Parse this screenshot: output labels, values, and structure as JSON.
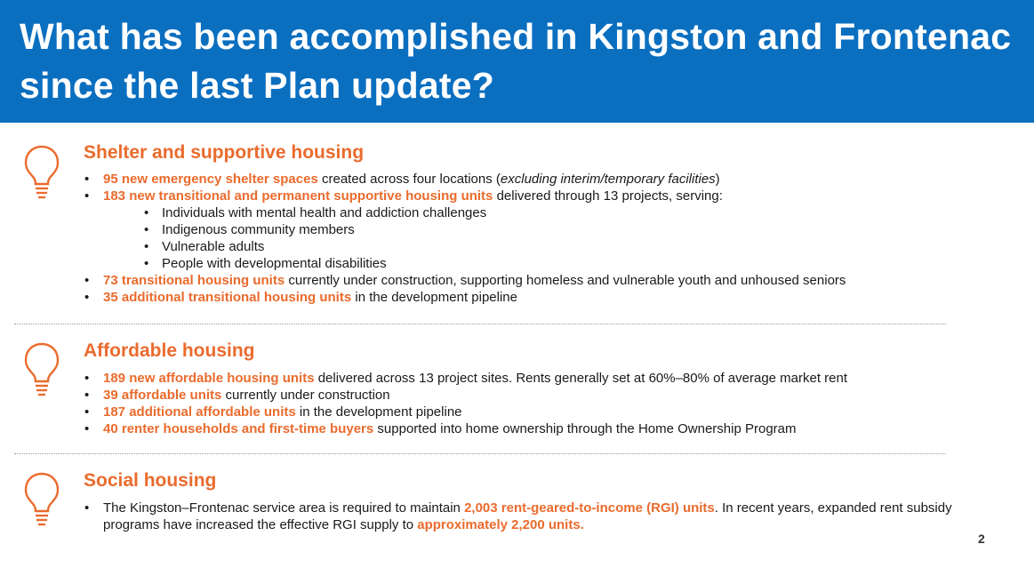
{
  "header": {
    "title": "What has been accomplished in Kingston and Frontenac since the last Plan update?"
  },
  "colors": {
    "header_bg": "#0b6fc0",
    "accent": "#ea6b2d",
    "text": "#1a1a1a"
  },
  "icons": {
    "section_icon": "lightbulb-icon"
  },
  "sections": [
    {
      "title": "Shelter and supportive housing",
      "items": [
        {
          "highlight": "95 new emergency shelter spaces",
          "text": " created across four locations (",
          "italic": "excluding interim/temporary facilities",
          "tail": ")"
        },
        {
          "highlight": "183 new transitional and permanent supportive housing units",
          "text": " delivered through 13 projects, serving:",
          "subitems": [
            "Individuals with mental health and addiction challenges",
            "Indigenous community members",
            "Vulnerable adults",
            "People with developmental disabilities"
          ]
        },
        {
          "highlight": "73 transitional housing units",
          "text": " currently under construction, supporting homeless and vulnerable youth and unhoused seniors"
        },
        {
          "highlight": "35 additional transitional housing units",
          "text": " in the development pipeline"
        }
      ]
    },
    {
      "title": "Affordable housing",
      "items": [
        {
          "highlight": "189 new affordable housing units",
          "text": " delivered across 13 project sites. Rents generally set at 60%–80% of average market rent"
        },
        {
          "highlight": "39 affordable units",
          "text": " currently under construction"
        },
        {
          "highlight": "187 additional affordable units",
          "text": " in the development pipeline"
        },
        {
          "highlight": "40 renter households and first-time buyers",
          "text": " supported into home ownership through the Home Ownership Program"
        }
      ]
    },
    {
      "title": "Social housing",
      "items": [
        {
          "lead": "The Kingston–Frontenac service area is required to maintain ",
          "highlight": "2,003 rent-geared-to-income (RGI) units",
          "text": ". In recent years, expanded rent subsidy programs have increased the effective RGI supply to ",
          "highlight2": "approximately 2,200 units."
        }
      ]
    }
  ],
  "page_number": "2"
}
